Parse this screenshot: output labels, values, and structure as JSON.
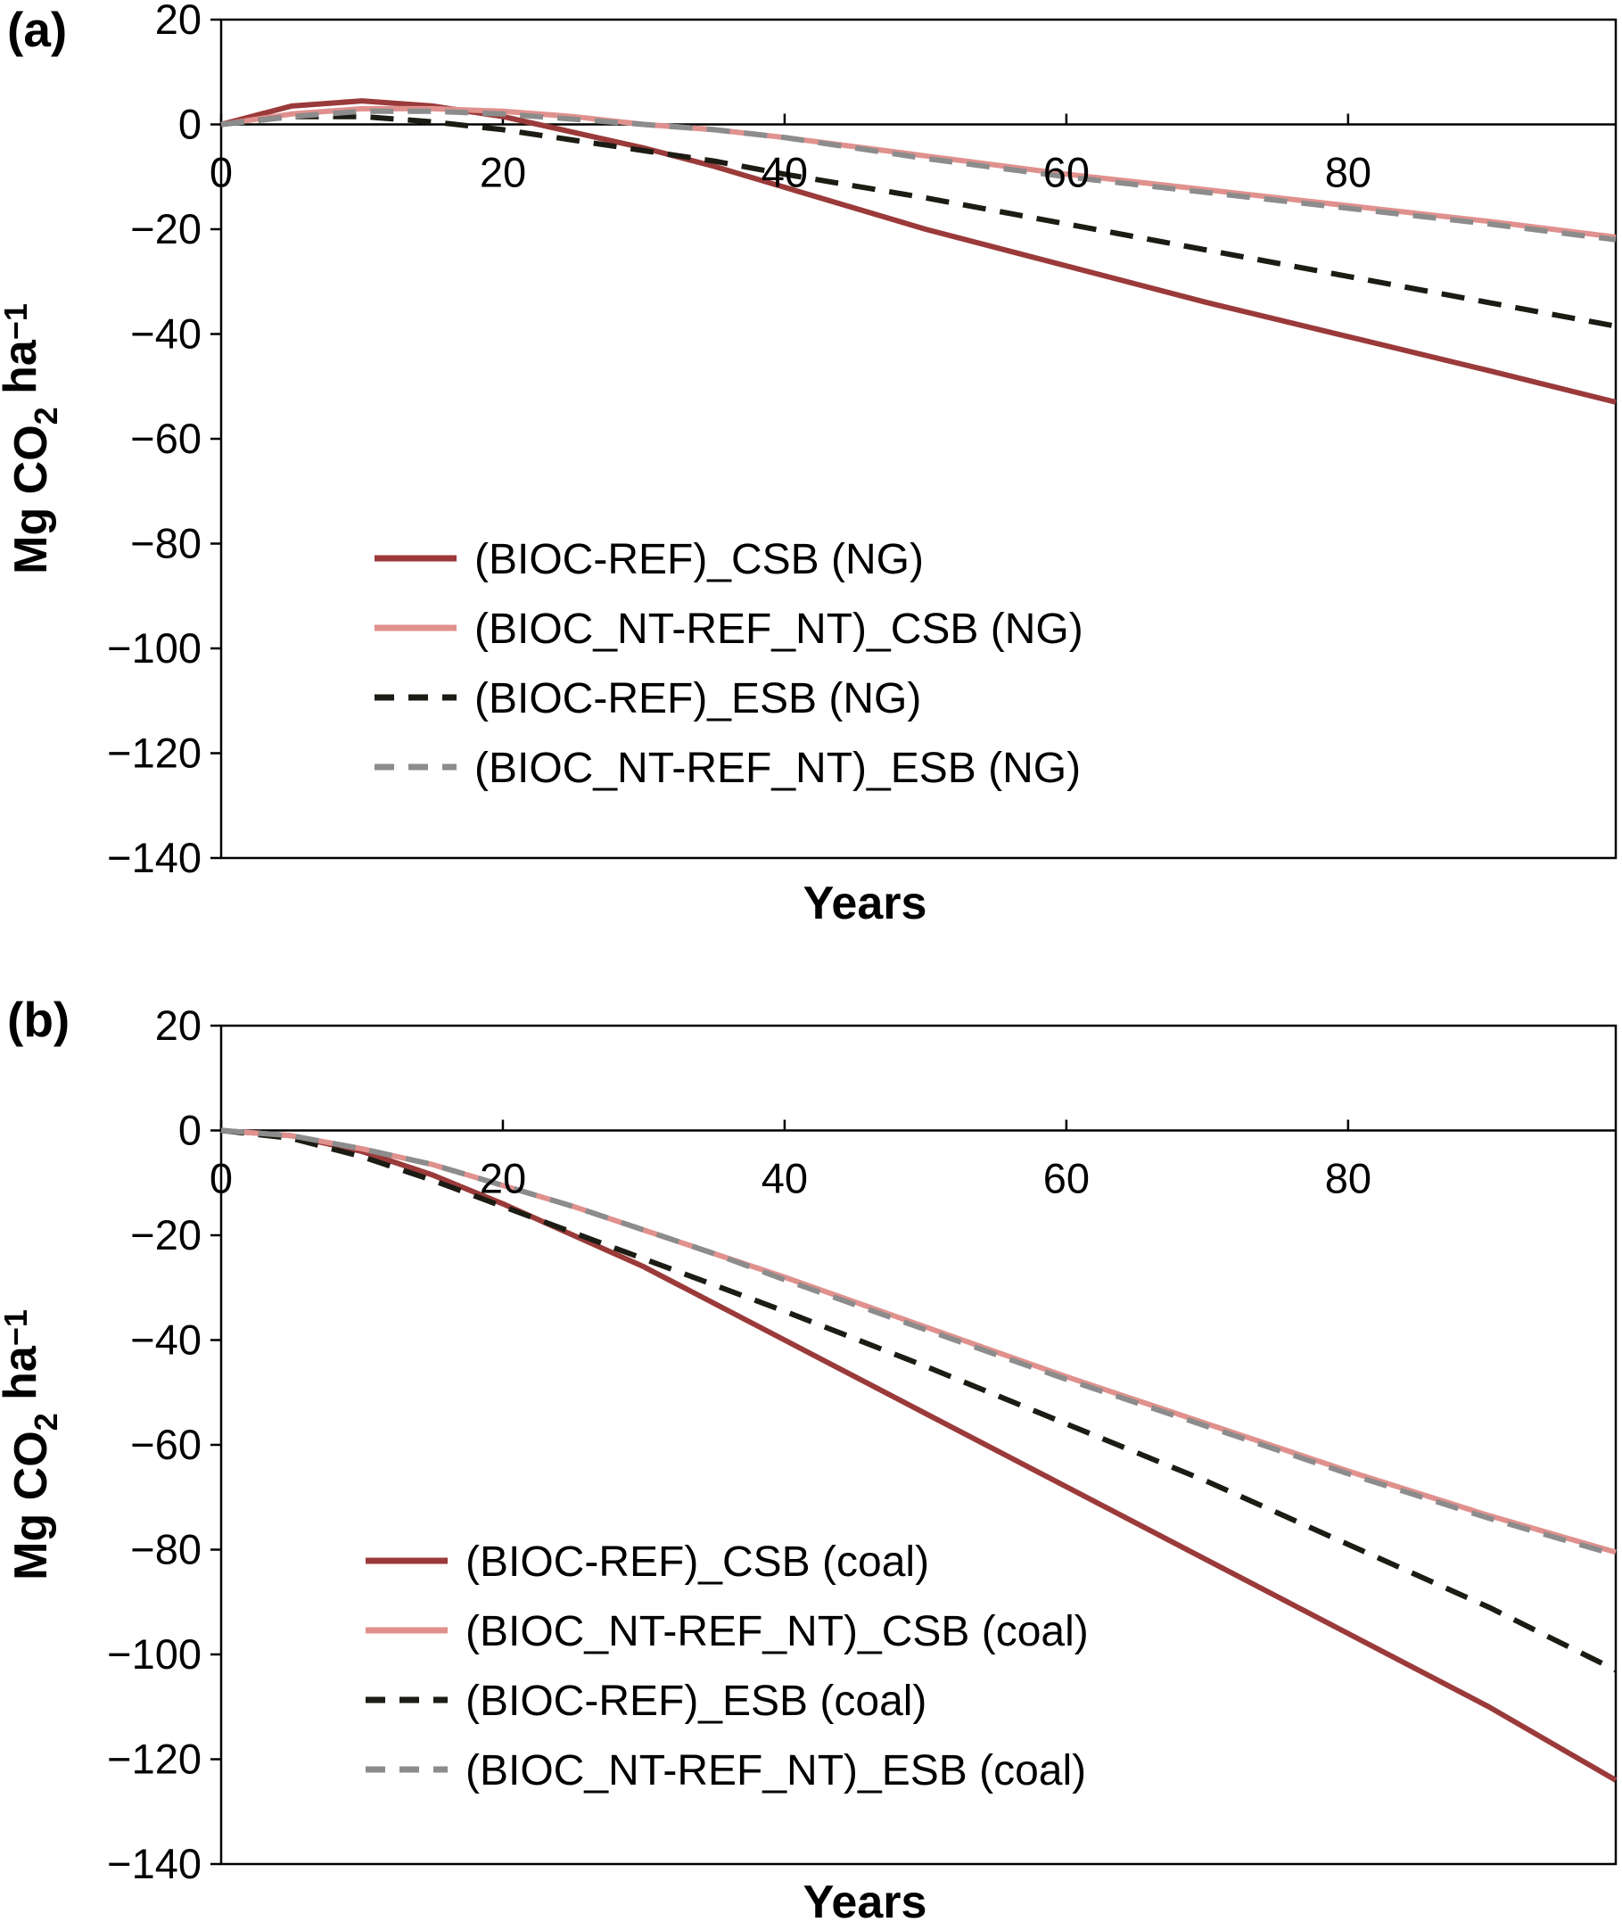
{
  "chart_data": [
    {
      "type": "line",
      "panel_label": "(a)",
      "xlabel": "Years",
      "ylabel_parts": [
        "Mg CO",
        "2",
        " ha",
        "−1"
      ],
      "xlim": [
        0,
        99
      ],
      "ylim": [
        -140,
        20
      ],
      "xticks": [
        0,
        20,
        40,
        60,
        80
      ],
      "xtick_labels": [
        "0",
        "20",
        "40",
        "60",
        "80"
      ],
      "yticks": [
        20,
        0,
        -20,
        -40,
        -60,
        -80,
        -100,
        -120,
        -140
      ],
      "ytick_labels": [
        "20",
        "0",
        "−20",
        "−40",
        "−60",
        "−80",
        "−100",
        "−120",
        "−140"
      ],
      "legend_position": "center-left",
      "series": [
        {
          "name": "(BIOC-REF)_CSB (NG)",
          "color": "#9B3A3A",
          "dash": "solid",
          "x": [
            0,
            5,
            10,
            15,
            20,
            25,
            30,
            35,
            40,
            50,
            60,
            70,
            80,
            90,
            99
          ],
          "y": [
            0,
            3.5,
            4.5,
            3.5,
            1.5,
            -1.5,
            -4.5,
            -8,
            -12,
            -20,
            -27,
            -34,
            -40.5,
            -47,
            -53
          ]
        },
        {
          "name": "(BIOC_NT-REF_NT)_CSB (NG)",
          "color": "#E0918E",
          "dash": "solid",
          "x": [
            0,
            5,
            10,
            15,
            20,
            25,
            30,
            35,
            40,
            50,
            60,
            70,
            80,
            90,
            99
          ],
          "y": [
            0,
            2,
            3,
            3,
            2.5,
            1.5,
            0,
            -1,
            -2.5,
            -6,
            -9.5,
            -12.5,
            -15.5,
            -18.5,
            -21.5
          ]
        },
        {
          "name": "(BIOC-REF)_ESB (NG)",
          "color": "#1C1C14",
          "dash": "dashed",
          "x": [
            0,
            5,
            10,
            15,
            20,
            25,
            30,
            35,
            40,
            50,
            60,
            70,
            80,
            90,
            99
          ],
          "y": [
            0,
            1.5,
            1.5,
            0.5,
            -1,
            -3,
            -5,
            -7,
            -9.5,
            -14,
            -19,
            -24,
            -29,
            -34,
            -38.5
          ]
        },
        {
          "name": "(BIOC_NT-REF_NT)_ESB (NG)",
          "color": "#8C8C8C",
          "dash": "dashed",
          "x": [
            0,
            5,
            10,
            15,
            20,
            25,
            30,
            35,
            40,
            50,
            60,
            70,
            80,
            90,
            99
          ],
          "y": [
            0,
            1.5,
            2.5,
            2.5,
            2,
            1,
            0,
            -1,
            -2.5,
            -6.5,
            -10,
            -13,
            -16,
            -19,
            -22
          ]
        }
      ]
    },
    {
      "type": "line",
      "panel_label": "(b)",
      "xlabel": "Years",
      "ylabel_parts": [
        "Mg CO",
        "2",
        " ha",
        "−1"
      ],
      "xlim": [
        0,
        99
      ],
      "ylim": [
        -140,
        20
      ],
      "xticks": [
        0,
        20,
        40,
        60,
        80
      ],
      "xtick_labels": [
        "0",
        "20",
        "40",
        "60",
        "80"
      ],
      "yticks": [
        20,
        0,
        -20,
        -40,
        -60,
        -80,
        -100,
        -120,
        -140
      ],
      "ytick_labels": [
        "20",
        "0",
        "−20",
        "−40",
        "−60",
        "−80",
        "−100",
        "−120",
        "−140"
      ],
      "legend_position": "bottom-left",
      "series": [
        {
          "name": "(BIOC-REF)_CSB (coal)",
          "color": "#9B3A3A",
          "dash": "solid",
          "x": [
            0,
            5,
            10,
            15,
            20,
            25,
            30,
            35,
            40,
            50,
            60,
            70,
            80,
            90,
            99
          ],
          "y": [
            0,
            -1,
            -4,
            -8.5,
            -14,
            -20,
            -26,
            -33,
            -40,
            -54,
            -68,
            -82,
            -96,
            -110,
            -124
          ]
        },
        {
          "name": "(BIOC_NT-REF_NT)_CSB (coal)",
          "color": "#E0918E",
          "dash": "solid",
          "x": [
            0,
            5,
            10,
            15,
            20,
            25,
            30,
            35,
            40,
            50,
            60,
            70,
            80,
            90,
            99
          ],
          "y": [
            0,
            -1,
            -3.5,
            -6.5,
            -10.5,
            -14.5,
            -19,
            -23.5,
            -28,
            -37.5,
            -47,
            -56,
            -65,
            -73.5,
            -80.5
          ]
        },
        {
          "name": "(BIOC-REF)_ESB (coal)",
          "color": "#1C1C14",
          "dash": "dashed",
          "x": [
            0,
            5,
            10,
            15,
            20,
            25,
            30,
            35,
            40,
            50,
            60,
            70,
            80,
            90,
            99
          ],
          "y": [
            0,
            -1.5,
            -5,
            -9.5,
            -14.5,
            -19.5,
            -24.5,
            -29.5,
            -34.5,
            -45,
            -56,
            -67,
            -79,
            -91,
            -103
          ]
        },
        {
          "name": "(BIOC_NT-REF_NT)_ESB (coal)",
          "color": "#8C8C8C",
          "dash": "dashed",
          "x": [
            0,
            5,
            10,
            15,
            20,
            25,
            30,
            35,
            40,
            50,
            60,
            70,
            80,
            90,
            99
          ],
          "y": [
            0,
            -1,
            -3.5,
            -6.5,
            -10.5,
            -14.5,
            -19,
            -23.5,
            -28.5,
            -38,
            -47.5,
            -56.5,
            -65.5,
            -74,
            -81
          ]
        }
      ]
    }
  ]
}
